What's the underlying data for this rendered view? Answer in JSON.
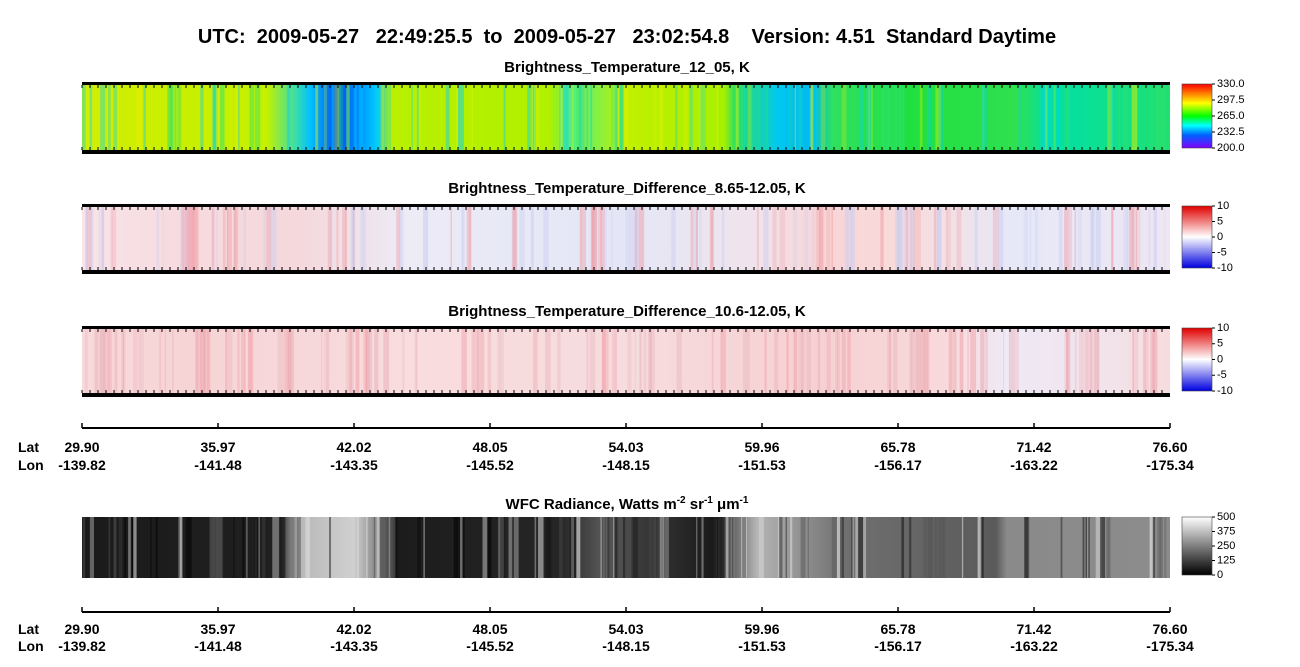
{
  "header": {
    "title": "UTC:  2009-05-27   22:49:25.5  to  2009-05-27   23:02:54.8    Version: 4.51  Standard Daytime"
  },
  "panels": [
    {
      "title": "Brightness_Temperature_12_05, K",
      "colorbar_ticks": [
        {
          "value": 200,
          "label": "200.0"
        },
        {
          "value": 232.5,
          "label": "232.5"
        },
        {
          "value": 265,
          "label": "265.0"
        },
        {
          "value": 297.5,
          "label": "297.5"
        },
        {
          "value": 330,
          "label": "330.0"
        }
      ]
    },
    {
      "title": "Brightness_Temperature_Difference_8.65-12.05, K",
      "colorbar_ticks": [
        -10,
        -5,
        0,
        5,
        10
      ]
    },
    {
      "title": "Brightness_Temperature_Difference_10.6-12.05, K",
      "colorbar_ticks": [
        -10,
        -5,
        0,
        5,
        10
      ]
    }
  ],
  "wfc": {
    "title_parts": [
      "WFC Radiance, Watts m",
      "-2",
      " sr",
      "-1",
      " μm",
      "-1"
    ],
    "colorbar_ticks": [
      0,
      125,
      250,
      375,
      500
    ]
  },
  "track_axes": [
    {
      "lat_label": "Lat",
      "lon_label": "Lon",
      "lat_ticks": [
        {
          "value": 29.9,
          "label": "29.90"
        },
        35.97,
        42.02,
        48.05,
        54.03,
        59.96,
        65.78,
        71.42,
        {
          "value": 76.6,
          "label": "76.60"
        }
      ],
      "lon_ticks": [
        -139.82,
        -141.48,
        -143.35,
        -145.52,
        -148.15,
        -151.53,
        -156.17,
        -163.22,
        -175.34
      ]
    },
    {
      "lat_label": "Lat",
      "lon_label": "Lon",
      "lat_ticks": [
        {
          "value": 29.9,
          "label": "29.90"
        },
        35.97,
        42.02,
        48.05,
        54.03,
        59.96,
        65.78,
        71.42,
        {
          "value": 76.6,
          "label": "76.60"
        }
      ],
      "lon_ticks": [
        -139.82,
        -141.48,
        -143.35,
        -145.52,
        -148.15,
        -151.53,
        -156.17,
        -163.22,
        -175.34
      ]
    }
  ]
}
